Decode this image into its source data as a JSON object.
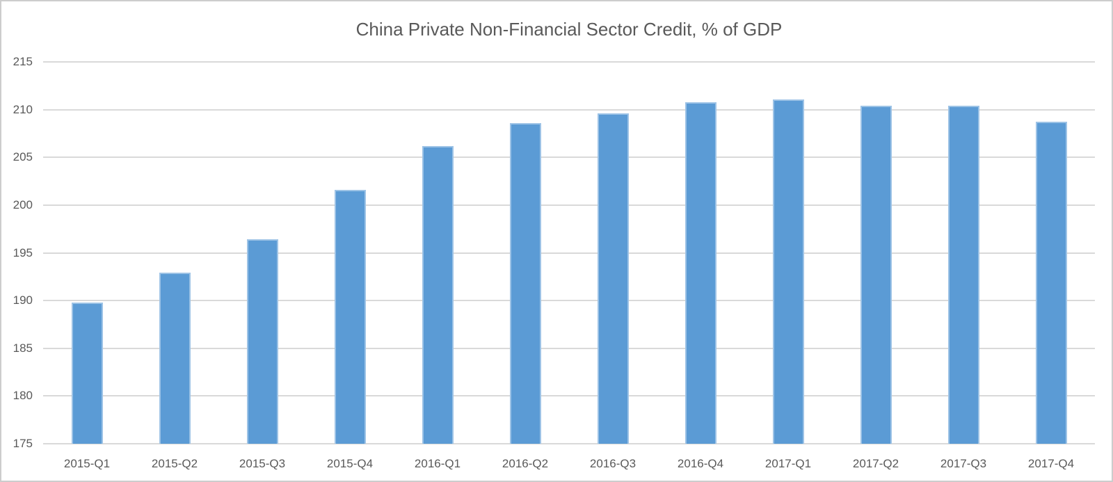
{
  "chart_data": {
    "type": "bar",
    "title": "China Private Non-Financial Sector Credit, % of GDP",
    "categories": [
      "2015-Q1",
      "2015-Q2",
      "2015-Q3",
      "2015-Q4",
      "2016-Q1",
      "2016-Q2",
      "2016-Q3",
      "2016-Q4",
      "2017-Q1",
      "2017-Q2",
      "2017-Q3",
      "2017-Q4"
    ],
    "values": [
      189.8,
      192.9,
      196.4,
      201.6,
      206.2,
      208.6,
      209.6,
      210.8,
      211.1,
      210.4,
      210.4,
      208.7
    ],
    "xlabel": "",
    "ylabel": "",
    "ylim": [
      175,
      215
    ],
    "yticks": [
      175,
      180,
      185,
      190,
      195,
      200,
      205,
      210,
      215
    ],
    "grid": true,
    "legend_position": "none",
    "colors": {
      "bar_fill": "#5b9bd5",
      "bar_border": "#9dc3e6",
      "gridline": "#d9d9d9",
      "tick_label": "#595959",
      "title": "#595959",
      "frame_border": "#cdcdcd"
    }
  }
}
